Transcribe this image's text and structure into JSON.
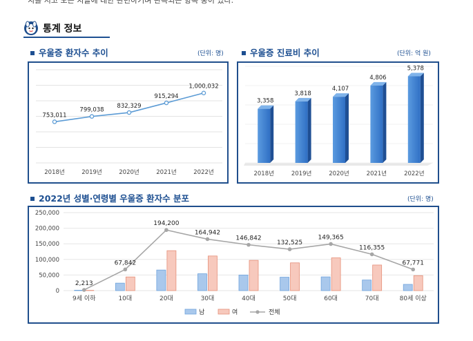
{
  "top_text": "치를 지고 모든 치들에 대한 관련하기며 관측되는 항목 중이 있다.",
  "section": {
    "title": "통계 정보",
    "icon": "mascot-icon"
  },
  "chart_data": [
    {
      "type": "line",
      "title": "우울증 환자수 추이",
      "unit": "(단위: 명)",
      "categories": [
        "2018년",
        "2019년",
        "2020년",
        "2021년",
        "2022년"
      ],
      "values": [
        753011,
        799038,
        832329,
        915294,
        1000032
      ],
      "labels": [
        "753,011",
        "799,038",
        "832,329",
        "915,294",
        "1,000,032"
      ],
      "color": "#5b9bd5",
      "grid": true
    },
    {
      "type": "bar",
      "title": "우울증 진료비 추이",
      "unit": "(단위: 억 원)",
      "categories": [
        "2018년",
        "2019년",
        "2020년",
        "2021년",
        "2022년"
      ],
      "values": [
        3358,
        3818,
        4107,
        4806,
        5378
      ],
      "labels": [
        "3,358",
        "3,818",
        "4,107",
        "4,806",
        "5,378"
      ],
      "color": "#3f7fd0"
    },
    {
      "type": "bar",
      "title": "2022년 성별·연령별 우울증 환자수 분포",
      "unit": "(단위: 명)",
      "categories": [
        "9세 이하",
        "10대",
        "20대",
        "30대",
        "40대",
        "50대",
        "60대",
        "70대",
        "80세 이상"
      ],
      "ylim": [
        0,
        250000
      ],
      "yticks": [
        "250,000",
        "200,000",
        "150,000",
        "100,000",
        "50,000",
        "0"
      ],
      "ytick_values": [
        250000,
        200000,
        150000,
        100000,
        50000,
        0
      ],
      "series": [
        {
          "name": "남",
          "values": [
            1300,
            24000,
            66000,
            54000,
            50000,
            43000,
            44000,
            34000,
            20000
          ],
          "color": "#a9c8ec"
        },
        {
          "name": "여",
          "values": [
            900,
            43800,
            128000,
            111000,
            97000,
            89000,
            105000,
            82000,
            48000
          ],
          "color": "#f7c9bd"
        },
        {
          "name": "전체",
          "values": [
            2213,
            67842,
            194200,
            164942,
            146842,
            132525,
            149365,
            116355,
            67771
          ],
          "color": "#a6a6a6",
          "labels": [
            "2,213",
            "67,842",
            "194,200",
            "164,942",
            "146,842",
            "132,525",
            "149,365",
            "116,355",
            "67,771"
          ]
        }
      ],
      "legend_position": "bottom"
    }
  ]
}
